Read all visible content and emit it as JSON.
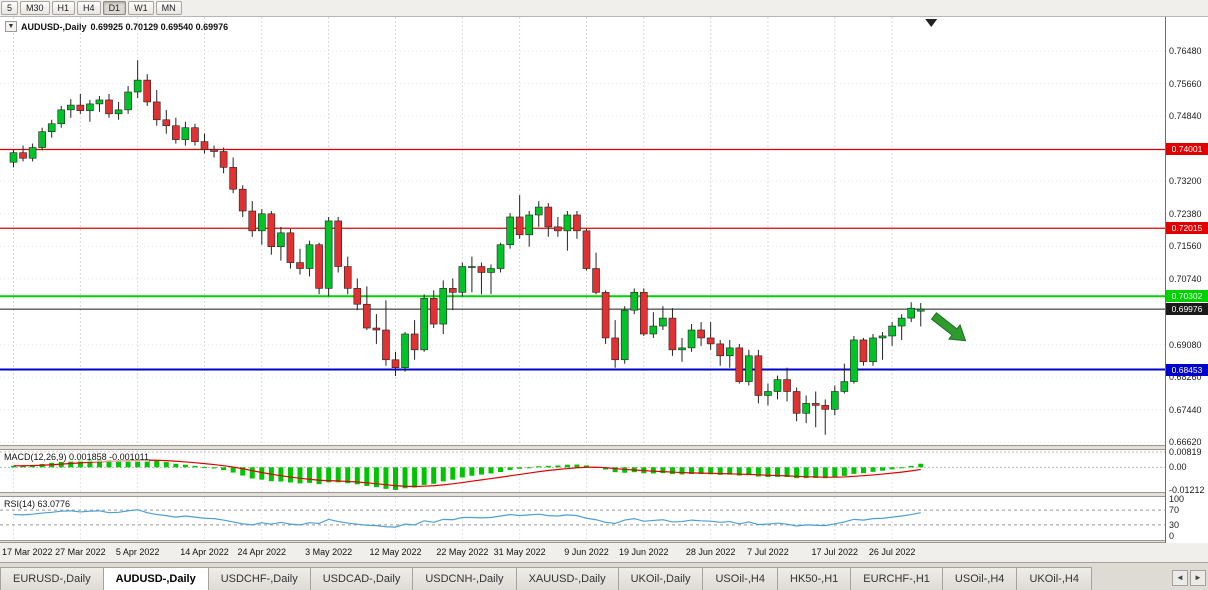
{
  "toolbar": {
    "periods": [
      {
        "label": "5",
        "active": false
      },
      {
        "label": "M30",
        "active": false
      },
      {
        "label": "H1",
        "active": false
      },
      {
        "label": "H4",
        "active": false
      },
      {
        "label": "D1",
        "active": true
      },
      {
        "label": "W1",
        "active": false
      },
      {
        "label": "MN",
        "active": false
      }
    ]
  },
  "icons": {
    "symbol_dropdown": "▼"
  },
  "chart_header": {
    "symbol": "AUDUSD-,Daily",
    "ohlc": "0.69925 0.70129 0.69540 0.69976"
  },
  "price_axis": {
    "gridlines": [
      "0.76480",
      "0.75660",
      "0.74840",
      "0.73200",
      "0.72380",
      "0.71560",
      "0.70740",
      "0.69080",
      "0.68260",
      "0.67440",
      "0.66620"
    ]
  },
  "chart_data": {
    "type": "candlestick",
    "title": "AUDUSD-,Daily",
    "up_color": "#00c327",
    "down_color": "#e03232",
    "current": {
      "open": 0.69925,
      "high": 0.70129,
      "low": 0.6954,
      "close": 0.69976
    },
    "x_labels": [
      {
        "label": "17 Mar 2022",
        "i": 0
      },
      {
        "label": "27 Mar 2022",
        "i": 7
      },
      {
        "label": "5 Apr 2022",
        "i": 13
      },
      {
        "label": "14 Apr 2022",
        "i": 20
      },
      {
        "label": "24 Apr 2022",
        "i": 26
      },
      {
        "label": "3 May 2022",
        "i": 33
      },
      {
        "label": "12 May 2022",
        "i": 40
      },
      {
        "label": "22 May 2022",
        "i": 47
      },
      {
        "label": "31 May 2022",
        "i": 53
      },
      {
        "label": "9 Jun 2022",
        "i": 60
      },
      {
        "label": "19 Jun 2022",
        "i": 66
      },
      {
        "label": "28 Jun 2022",
        "i": 73
      },
      {
        "label": "7 Jul 2022",
        "i": 79
      },
      {
        "label": "17 Jul 2022",
        "i": 86
      },
      {
        "label": "26 Jul 2022",
        "i": 92
      }
    ],
    "levels": [
      {
        "price": 0.74001,
        "label": "0.74001",
        "color": "#e00000",
        "width": 1.3
      },
      {
        "price": 0.72015,
        "label": "0.72015",
        "color": "#e00000",
        "width": 1.3
      },
      {
        "price": 0.70302,
        "label": "0.70302",
        "color": "#00d200",
        "width": 2
      },
      {
        "price": 0.69976,
        "label": "0.69976",
        "color": "#1a1a1a",
        "width": 1
      },
      {
        "price": 0.68453,
        "label": "0.68453",
        "color": "#0000cd",
        "width": 2
      }
    ],
    "annotations": {
      "trend_arrow": {
        "direction": "down-right",
        "color": "#2e9b2e"
      }
    },
    "candles": [
      [
        0.7368,
        0.74,
        0.7355,
        0.7392
      ],
      [
        0.7392,
        0.741,
        0.737,
        0.7378
      ],
      [
        0.7378,
        0.7415,
        0.737,
        0.7405
      ],
      [
        0.7405,
        0.7455,
        0.7398,
        0.7445
      ],
      [
        0.7445,
        0.7475,
        0.743,
        0.7465
      ],
      [
        0.7465,
        0.751,
        0.7455,
        0.75
      ],
      [
        0.75,
        0.7527,
        0.748,
        0.7512
      ],
      [
        0.7512,
        0.754,
        0.749,
        0.7498
      ],
      [
        0.7498,
        0.7525,
        0.747,
        0.7515
      ],
      [
        0.7515,
        0.7535,
        0.7495,
        0.7525
      ],
      [
        0.7525,
        0.754,
        0.748,
        0.749
      ],
      [
        0.749,
        0.752,
        0.7475,
        0.75
      ],
      [
        0.75,
        0.756,
        0.749,
        0.7545
      ],
      [
        0.7545,
        0.7625,
        0.753,
        0.7575
      ],
      [
        0.7575,
        0.759,
        0.751,
        0.752
      ],
      [
        0.752,
        0.755,
        0.746,
        0.7475
      ],
      [
        0.7475,
        0.75,
        0.744,
        0.746
      ],
      [
        0.746,
        0.748,
        0.7415,
        0.7425
      ],
      [
        0.7425,
        0.747,
        0.741,
        0.7455
      ],
      [
        0.7455,
        0.7465,
        0.741,
        0.742
      ],
      [
        0.742,
        0.744,
        0.739,
        0.74
      ],
      [
        0.74,
        0.741,
        0.738,
        0.7395
      ],
      [
        0.7395,
        0.7405,
        0.734,
        0.7355
      ],
      [
        0.7355,
        0.738,
        0.729,
        0.73
      ],
      [
        0.73,
        0.731,
        0.723,
        0.7245
      ],
      [
        0.7245,
        0.727,
        0.718,
        0.7195
      ],
      [
        0.7195,
        0.725,
        0.716,
        0.7238
      ],
      [
        0.7238,
        0.7245,
        0.7135,
        0.7155
      ],
      [
        0.7155,
        0.7205,
        0.712,
        0.719
      ],
      [
        0.719,
        0.72,
        0.71,
        0.7115
      ],
      [
        0.7115,
        0.715,
        0.7085,
        0.71
      ],
      [
        0.71,
        0.717,
        0.708,
        0.716
      ],
      [
        0.716,
        0.7165,
        0.7035,
        0.705
      ],
      [
        0.705,
        0.723,
        0.703,
        0.722
      ],
      [
        0.722,
        0.723,
        0.709,
        0.7105
      ],
      [
        0.7105,
        0.713,
        0.7035,
        0.705
      ],
      [
        0.705,
        0.7075,
        0.6995,
        0.701
      ],
      [
        0.701,
        0.7055,
        0.6945,
        0.695
      ],
      [
        0.695,
        0.6985,
        0.691,
        0.6945
      ],
      [
        0.6945,
        0.702,
        0.6855,
        0.687
      ],
      [
        0.687,
        0.689,
        0.6829,
        0.685
      ],
      [
        0.685,
        0.694,
        0.684,
        0.6935
      ],
      [
        0.6935,
        0.697,
        0.687,
        0.6895
      ],
      [
        0.6895,
        0.7035,
        0.689,
        0.7025
      ],
      [
        0.7025,
        0.7045,
        0.695,
        0.696
      ],
      [
        0.696,
        0.707,
        0.6935,
        0.705
      ],
      [
        0.705,
        0.7075,
        0.6995,
        0.704
      ],
      [
        0.704,
        0.7115,
        0.703,
        0.7105
      ],
      [
        0.7105,
        0.713,
        0.704,
        0.7105
      ],
      [
        0.7105,
        0.7115,
        0.7035,
        0.709
      ],
      [
        0.709,
        0.711,
        0.7035,
        0.71
      ],
      [
        0.71,
        0.7165,
        0.709,
        0.716
      ],
      [
        0.716,
        0.724,
        0.715,
        0.723
      ],
      [
        0.723,
        0.7285,
        0.7175,
        0.7185
      ],
      [
        0.7185,
        0.7245,
        0.7155,
        0.7235
      ],
      [
        0.7235,
        0.727,
        0.7205,
        0.7255
      ],
      [
        0.7255,
        0.7265,
        0.718,
        0.7205
      ],
      [
        0.7205,
        0.723,
        0.718,
        0.7195
      ],
      [
        0.7195,
        0.7245,
        0.7145,
        0.7235
      ],
      [
        0.7235,
        0.7245,
        0.7175,
        0.7195
      ],
      [
        0.7195,
        0.72,
        0.7095,
        0.71
      ],
      [
        0.71,
        0.714,
        0.7035,
        0.704
      ],
      [
        0.704,
        0.7045,
        0.691,
        0.6925
      ],
      [
        0.6925,
        0.697,
        0.685,
        0.687
      ],
      [
        0.687,
        0.7005,
        0.686,
        0.6995
      ],
      [
        0.6995,
        0.705,
        0.6985,
        0.704
      ],
      [
        0.704,
        0.705,
        0.693,
        0.6935
      ],
      [
        0.6935,
        0.699,
        0.6925,
        0.6955
      ],
      [
        0.6955,
        0.7005,
        0.6945,
        0.6975
      ],
      [
        0.6975,
        0.7,
        0.688,
        0.6895
      ],
      [
        0.6895,
        0.6925,
        0.6865,
        0.69
      ],
      [
        0.69,
        0.696,
        0.689,
        0.6945
      ],
      [
        0.6945,
        0.6965,
        0.6905,
        0.6925
      ],
      [
        0.6925,
        0.6965,
        0.6895,
        0.691
      ],
      [
        0.691,
        0.692,
        0.6855,
        0.688
      ],
      [
        0.688,
        0.692,
        0.685,
        0.69
      ],
      [
        0.69,
        0.691,
        0.681,
        0.6815
      ],
      [
        0.6815,
        0.6895,
        0.6805,
        0.688
      ],
      [
        0.688,
        0.6895,
        0.676,
        0.678
      ],
      [
        0.678,
        0.681,
        0.6755,
        0.679
      ],
      [
        0.679,
        0.683,
        0.677,
        0.682
      ],
      [
        0.682,
        0.685,
        0.6765,
        0.679
      ],
      [
        0.679,
        0.68,
        0.6715,
        0.6735
      ],
      [
        0.6735,
        0.678,
        0.671,
        0.676
      ],
      [
        0.676,
        0.679,
        0.67,
        0.6755
      ],
      [
        0.6755,
        0.677,
        0.6681,
        0.6745
      ],
      [
        0.6745,
        0.6805,
        0.673,
        0.679
      ],
      [
        0.679,
        0.686,
        0.6785,
        0.6815
      ],
      [
        0.6815,
        0.693,
        0.681,
        0.692
      ],
      [
        0.692,
        0.6925,
        0.6855,
        0.6865
      ],
      [
        0.6865,
        0.6935,
        0.6855,
        0.6925
      ],
      [
        0.6925,
        0.694,
        0.687,
        0.693
      ],
      [
        0.693,
        0.6965,
        0.6905,
        0.6955
      ],
      [
        0.6955,
        0.6985,
        0.692,
        0.6975
      ],
      [
        0.6975,
        0.7015,
        0.6965,
        0.7
      ],
      [
        0.69925,
        0.70129,
        0.6954,
        0.69976
      ]
    ],
    "indicators": {
      "macd": {
        "name": "MACD(12,26,9)",
        "values_text": "0.001858 -0.001011",
        "axis_labels": [
          "0.00819",
          "0.00",
          "-0.01212"
        ],
        "histogram_color": "#00c400",
        "signal_color": "#e00000",
        "histogram": [
          0.0008,
          0.001,
          0.0013,
          0.0018,
          0.0024,
          0.003,
          0.0035,
          0.0037,
          0.0039,
          0.0041,
          0.004,
          0.0039,
          0.0042,
          0.0046,
          0.0043,
          0.0036,
          0.0028,
          0.0019,
          0.0014,
          0.0008,
          0.0001,
          -0.0006,
          -0.0015,
          -0.0028,
          -0.0044,
          -0.006,
          -0.0066,
          -0.0074,
          -0.0076,
          -0.0081,
          -0.0086,
          -0.0083,
          -0.009,
          -0.008,
          -0.008,
          -0.0085,
          -0.0091,
          -0.01,
          -0.0106,
          -0.0115,
          -0.0121,
          -0.0112,
          -0.0108,
          -0.0094,
          -0.0088,
          -0.0075,
          -0.0066,
          -0.0054,
          -0.0045,
          -0.0039,
          -0.0033,
          -0.0025,
          -0.0014,
          -0.0008,
          -0.0002,
          0.0006,
          0.0008,
          0.001,
          0.0014,
          0.0015,
          0.001,
          0.0002,
          -0.0012,
          -0.0026,
          -0.0029,
          -0.0026,
          -0.0032,
          -0.0033,
          -0.0031,
          -0.0036,
          -0.0038,
          -0.0036,
          -0.0036,
          -0.0037,
          -0.004,
          -0.0039,
          -0.0044,
          -0.0042,
          -0.0049,
          -0.0052,
          -0.0051,
          -0.0052,
          -0.0058,
          -0.0058,
          -0.0057,
          -0.0058,
          -0.0053,
          -0.0046,
          -0.0035,
          -0.0031,
          -0.0024,
          -0.0018,
          -0.0011,
          -0.0004,
          0.0008,
          0.0019
        ]
      },
      "rsi": {
        "name": "RSI(14)",
        "value_text": "63.0776",
        "axis_labels": [
          "100",
          "70",
          "30",
          "0"
        ],
        "levels": [
          70,
          30
        ],
        "line_color": "#4e9fd4",
        "values": [
          58,
          57,
          59,
          62,
          64,
          67,
          68,
          65,
          67,
          68,
          63,
          64,
          68,
          71,
          63,
          58,
          55,
          51,
          54,
          51,
          48,
          47,
          43,
          38,
          33,
          30,
          36,
          32,
          37,
          32,
          30,
          36,
          34,
          45,
          39,
          35,
          32,
          29,
          28,
          25,
          24,
          32,
          30,
          41,
          37,
          45,
          44,
          50,
          50,
          49,
          50,
          54,
          58,
          55,
          57,
          59,
          55,
          54,
          57,
          55,
          48,
          44,
          37,
          34,
          43,
          47,
          40,
          42,
          44,
          38,
          39,
          43,
          41,
          40,
          37,
          39,
          33,
          38,
          31,
          32,
          35,
          32,
          27,
          30,
          29,
          28,
          33,
          38,
          45,
          43,
          47,
          48,
          51,
          54,
          58,
          63.08
        ]
      }
    }
  },
  "tabs": {
    "scroll_left": "◄",
    "scroll_right": "►",
    "items": [
      {
        "label": "EURUSD-,Daily",
        "active": false
      },
      {
        "label": "AUDUSD-,Daily",
        "active": true
      },
      {
        "label": "USDCHF-,Daily",
        "active": false
      },
      {
        "label": "USDCAD-,Daily",
        "active": false
      },
      {
        "label": "USDCNH-,Daily",
        "active": false
      },
      {
        "label": "XAUUSD-,Daily",
        "active": false
      },
      {
        "label": "UKOil-,Daily",
        "active": false
      },
      {
        "label": "USOil-,H4",
        "active": false
      },
      {
        "label": "HK50-,H1",
        "active": false
      },
      {
        "label": "EURCHF-,H1",
        "active": false
      },
      {
        "label": "USOil-,H4",
        "active": false
      },
      {
        "label": "UKOil-,H4",
        "active": false
      }
    ]
  }
}
